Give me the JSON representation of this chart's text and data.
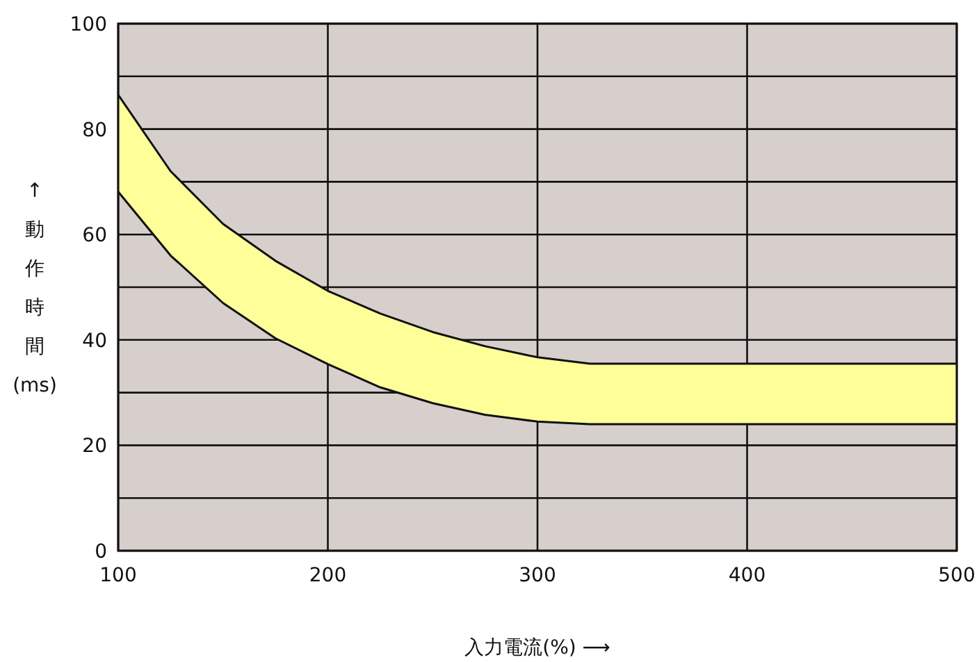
{
  "chart_data": {
    "type": "line",
    "xlabel": "入力電流(%) ⟶",
    "ylabel": "↑動作時間(ms)",
    "xlim": [
      100,
      500
    ],
    "ylim": [
      0,
      100
    ],
    "xticks": [
      100,
      200,
      300,
      400,
      500
    ],
    "yticks": [
      0,
      {
        "value": 10,
        "label": null
      },
      20,
      {
        "value": 30,
        "label": null
      },
      40,
      {
        "value": 50,
        "label": null
      },
      60,
      {
        "value": 70,
        "label": null
      },
      80,
      {
        "value": 90,
        "label": null
      },
      100
    ],
    "grid": true,
    "series": [
      {
        "type": "line",
        "color": "#111111",
        "x": [
          100,
          125,
          150,
          175,
          200,
          225,
          250,
          275,
          300,
          325,
          350,
          500
        ],
        "values": [
          86.5,
          72,
          62,
          55,
          49.3,
          45,
          41.5,
          38.8,
          36.7,
          35.5,
          35.5,
          35.5
        ],
        "lower": [
          68.1,
          56,
          47,
          40.3,
          35.4,
          31,
          28,
          25.8,
          24.5,
          24,
          24,
          24
        ],
        "upper": [
          86.5,
          72,
          62,
          55,
          49.3,
          45,
          41.5,
          38.8,
          36.7,
          35.5,
          35.5,
          35.5
        ]
      },
      {
        "type": "line",
        "color": "#111111",
        "x": [
          100,
          125,
          150,
          175,
          200,
          225,
          250,
          275,
          300,
          325,
          350,
          500
        ],
        "values": [
          68.1,
          56,
          47,
          40.3,
          35.4,
          31,
          28,
          25.8,
          24.5,
          24,
          24,
          24
        ]
      }
    ]
  }
}
